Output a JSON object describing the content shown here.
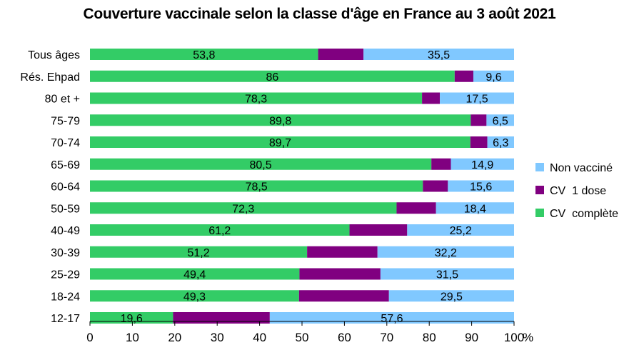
{
  "title": "Couverture vaccinale selon la classe d'âge en France au 3 août 2021",
  "chart_data": {
    "type": "bar",
    "orientation": "horizontal",
    "stacked": "100%",
    "title": "Couverture vaccinale selon la classe d'âge en France au 3 août 2021",
    "categories": [
      "Tous âges",
      "Rés. Ehpad",
      "80 et +",
      "75-79",
      "70-74",
      "65-69",
      "60-64",
      "50-59",
      "40-49",
      "30-39",
      "25-29",
      "18-24",
      "12-17"
    ],
    "series": [
      {
        "name": "CV complète",
        "color": "#33cc66",
        "values": [
          53.8,
          86,
          78.3,
          89.8,
          89.7,
          80.5,
          78.5,
          72.3,
          61.2,
          51.2,
          49.4,
          49.3,
          19.6
        ],
        "labels": [
          "53,8",
          "86",
          "78,3",
          "89,8",
          "89,7",
          "80,5",
          "78,5",
          "72,3",
          "61,2",
          "51,2",
          "49,4",
          "49,3",
          "19,6"
        ]
      },
      {
        "name": "CV 1 dose",
        "color": "#800080",
        "values": [
          10.7,
          4.4,
          4.2,
          3.7,
          4.0,
          4.6,
          5.9,
          9.3,
          13.6,
          16.6,
          19.1,
          21.2,
          22.8
        ],
        "labels": null
      },
      {
        "name": "Non vacciné",
        "color": "#80c8ff",
        "values": [
          35.5,
          9.6,
          17.5,
          6.5,
          6.3,
          14.9,
          15.6,
          18.4,
          25.2,
          32.2,
          31.5,
          29.5,
          57.6
        ],
        "labels": [
          "35,5",
          "9,6",
          "17,5",
          "6,5",
          "6,3",
          "14,9",
          "15,6",
          "18,4",
          "25,2",
          "32,2",
          "31,5",
          "29,5",
          "57,6"
        ]
      }
    ],
    "xlim": [
      0,
      100
    ],
    "xticks": [
      "0",
      "10",
      "20",
      "30",
      "40",
      "50",
      "60",
      "70",
      "80",
      "90",
      "100"
    ],
    "x_unit": "%",
    "legend": {
      "position": "right",
      "entries": [
        {
          "label": "Non vacciné",
          "color": "#80c8ff"
        },
        {
          "label": "CV  1 dose",
          "color": "#800080"
        },
        {
          "label": "CV  complète",
          "color": "#33cc66"
        }
      ]
    },
    "grid": false
  }
}
